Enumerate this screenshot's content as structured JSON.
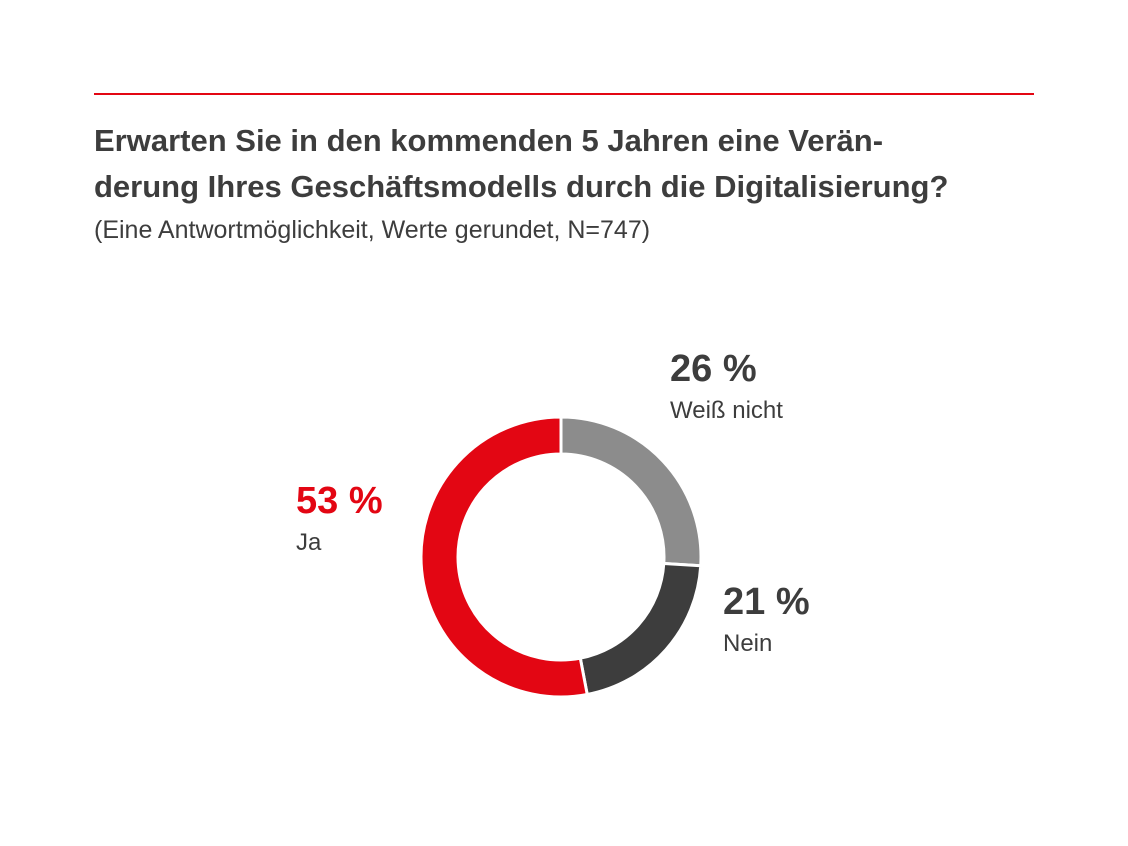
{
  "header": {
    "title_line1": "Erwarten Sie in den kommenden 5 Jahren eine Verän-",
    "title_line2": "derung Ihres Geschäftsmodells durch die Digitalisierung?",
    "subtitle": "(Eine Antwortmöglichkeit, Werte gerundet, N=747)"
  },
  "colors": {
    "accent": "#e30613",
    "text": "#3d3d3d"
  },
  "chart_data": {
    "type": "pie",
    "variant": "donut",
    "title": "Erwarten Sie in den kommenden 5 Jahren eine Veränderung Ihres Geschäftsmodells durch die Digitalisierung?",
    "subtitle": "(Eine Antwortmöglichkeit, Werte gerundet, N=747)",
    "unit": "%",
    "categories": [
      "Weiß nicht",
      "Nein",
      "Ja"
    ],
    "values": [
      26,
      21,
      53
    ],
    "value_labels": [
      "26 %",
      "21 %",
      "53 %"
    ],
    "colors": [
      "#8c8c8c",
      "#3d3d3d",
      "#e30613"
    ],
    "label_colors": [
      "#3d3d3d",
      "#3d3d3d",
      "#e30613"
    ],
    "start": "12 o'clock",
    "direction": "clockwise",
    "legend": "none"
  }
}
